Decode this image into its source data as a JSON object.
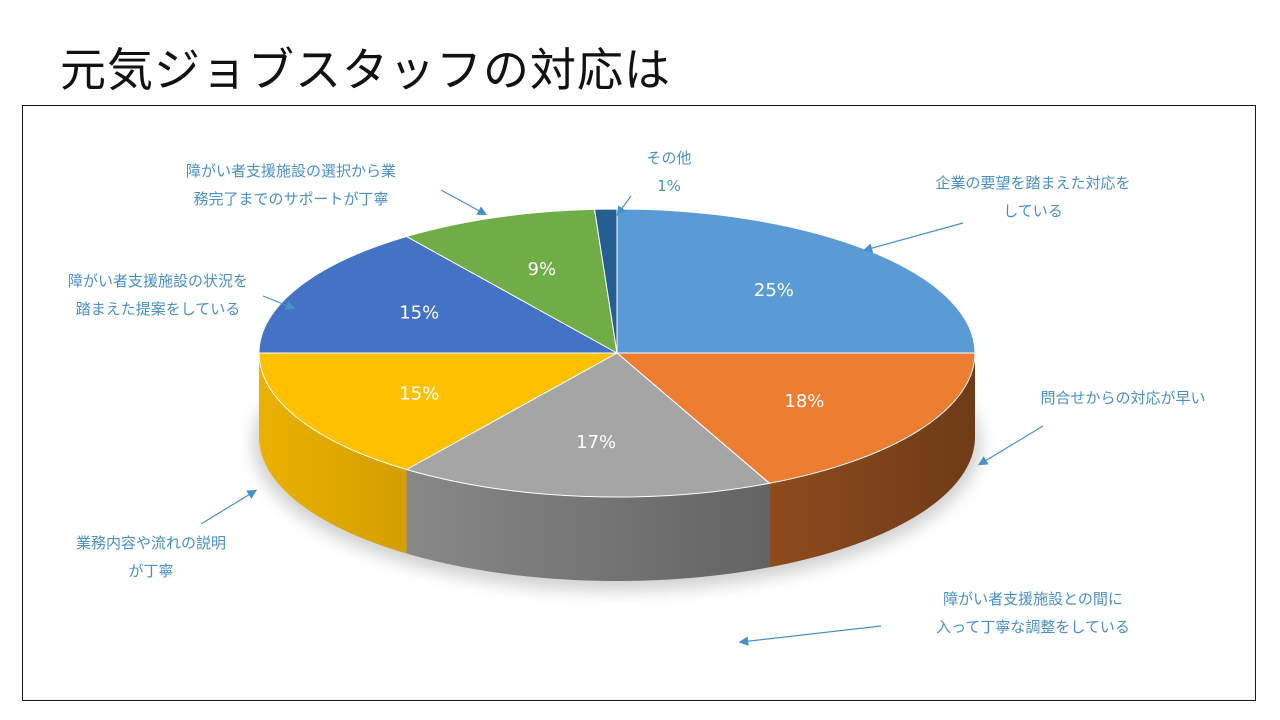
{
  "slide": {
    "title": "元気ジョブスタッフの対応は"
  },
  "chart_data": {
    "type": "pie",
    "style": "3d",
    "title": "",
    "legend": "none",
    "slices": [
      {
        "label": "企業の要望を踏まえた対応を\nしている",
        "value": 25,
        "display": "25%",
        "color": "#5b9bd5"
      },
      {
        "label": "問合せからの対応が早い",
        "value": 18,
        "display": "18%",
        "color": "#ed7d31"
      },
      {
        "label": "障がい者支援施設との間に\n入って丁寧な調整をしている",
        "value": 17,
        "display": "17%",
        "color": "#a5a5a5"
      },
      {
        "label": "業務内容や流れの説明\nが丁寧",
        "value": 15,
        "display": "15%",
        "color": "#ffc000"
      },
      {
        "label": "障がい者支援施設の状況を\n踏まえた提案をしている",
        "value": 15,
        "display": "15%",
        "color": "#4472c4"
      },
      {
        "label": "障がい者支援施設の選択から業\n務完了までのサポートが丁寧",
        "value": 9,
        "display": "9%",
        "color": "#70ad47"
      },
      {
        "label": "その他\n1%",
        "value": 1,
        "display": "",
        "color": "#255e91"
      }
    ],
    "label_color": "#4a90c8",
    "data_label_color": "#ffffff"
  }
}
